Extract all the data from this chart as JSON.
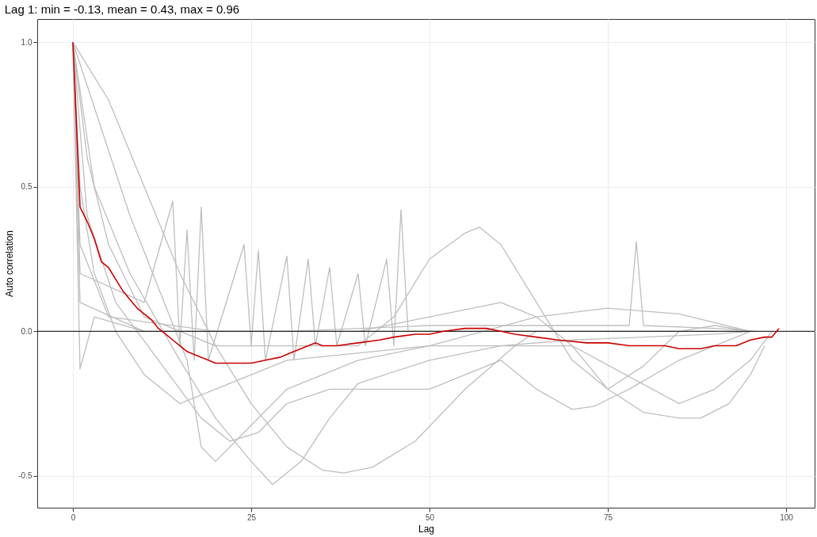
{
  "chart_data": {
    "type": "line",
    "title": "Lag 1: min = -0.13, mean = 0.43, max = 0.96",
    "xlabel": "Lag",
    "ylabel": "Auto correlation",
    "xlim": [
      -5,
      104
    ],
    "xticks": [
      0,
      25,
      50,
      75,
      100
    ],
    "ylim": [
      -0.61,
      1.08
    ],
    "yticks": [
      {
        "value": -0.5,
        "label": "-0.5"
      },
      {
        "value": 0,
        "label": "0.0"
      },
      {
        "value": 0.5,
        "label": "0.5"
      },
      {
        "value": 1,
        "label": "1.0"
      }
    ],
    "grid": true,
    "marker": "none",
    "line_style": "solid",
    "ref_lines": [
      {
        "axis": "y",
        "value": 0,
        "color": "#000000"
      }
    ],
    "series": [
      {
        "color": "#bebebe",
        "x": [
          0,
          5,
          10,
          15,
          20,
          25,
          30,
          35,
          38,
          42,
          48,
          55,
          62,
          65
        ],
        "values": [
          1,
          0.8,
          0.5,
          0.2,
          -0.05,
          -0.25,
          -0.4,
          -0.48,
          -0.49,
          -0.47,
          -0.38,
          -0.2,
          -0.05,
          0.0
        ]
      },
      {
        "color": "#bebebe",
        "x": [
          0,
          2,
          5,
          10,
          20,
          40,
          45,
          50,
          55,
          57,
          60,
          65,
          70,
          75,
          80,
          85,
          90,
          95
        ],
        "values": [
          1,
          0.6,
          0.3,
          0.05,
          -0.05,
          -0.05,
          0.05,
          0.25,
          0.34,
          0.36,
          0.3,
          0.1,
          -0.1,
          -0.2,
          -0.12,
          0.0,
          0.02,
          0.0
        ]
      },
      {
        "color": "#bebebe",
        "x": [
          0,
          3,
          8,
          15,
          20,
          25,
          28,
          32,
          36,
          40,
          50,
          60,
          70,
          80,
          90,
          95
        ],
        "values": [
          1,
          0.5,
          0.2,
          -0.1,
          -0.3,
          -0.45,
          -0.53,
          -0.45,
          -0.3,
          -0.18,
          -0.1,
          -0.05,
          -0.03,
          -0.02,
          -0.01,
          0
        ]
      },
      {
        "color": "#bebebe",
        "x": [
          0,
          1,
          5,
          20,
          40,
          50,
          60,
          65,
          70,
          75,
          80,
          85,
          88,
          92,
          95,
          97
        ],
        "values": [
          1,
          0.3,
          0.05,
          0,
          0,
          0.05,
          0.1,
          0.05,
          -0.05,
          -0.2,
          -0.28,
          -0.3,
          -0.3,
          -0.25,
          -0.15,
          -0.05
        ]
      },
      {
        "color": "#bebebe",
        "x": [
          0,
          1,
          10,
          14,
          15,
          16,
          17,
          18,
          19,
          24,
          25,
          26,
          27,
          30,
          31,
          33,
          34,
          36,
          37,
          40,
          41,
          44,
          45,
          46,
          47,
          60,
          70,
          80,
          90
        ],
        "values": [
          1,
          0.2,
          0.1,
          0.45,
          -0.05,
          0.35,
          -0.1,
          0.43,
          -0.1,
          0.3,
          -0.05,
          0.28,
          -0.1,
          0.26,
          -0.1,
          0.25,
          -0.05,
          0.22,
          -0.05,
          0.2,
          -0.05,
          0.25,
          -0.05,
          0.42,
          0.0,
          0.0,
          0.0,
          0.0,
          0.0
        ]
      },
      {
        "color": "#bebebe",
        "x": [
          0,
          1,
          10,
          30,
          50,
          70,
          78,
          79,
          80,
          90,
          96
        ],
        "values": [
          1,
          0.1,
          0,
          0,
          0.02,
          0.02,
          0.02,
          0.31,
          0.02,
          0.01,
          0.0
        ]
      },
      {
        "color": "#bebebe",
        "x": [
          0,
          2,
          6,
          12,
          18,
          22,
          26,
          30,
          36,
          45,
          50,
          55,
          60,
          65,
          70,
          73,
          78,
          85,
          90,
          95
        ],
        "values": [
          1,
          0.4,
          0.1,
          -0.1,
          -0.3,
          -0.38,
          -0.35,
          -0.25,
          -0.2,
          -0.2,
          -0.2,
          -0.15,
          -0.1,
          -0.2,
          -0.27,
          -0.26,
          -0.2,
          -0.1,
          -0.05,
          0
        ]
      },
      {
        "color": "#bebebe",
        "x": [
          0,
          1,
          3,
          10,
          30,
          60,
          80,
          95
        ],
        "values": [
          1,
          -0.13,
          0.05,
          0,
          0,
          0,
          0,
          0
        ]
      },
      {
        "color": "#bebebe",
        "x": [
          0,
          4,
          8,
          12,
          16,
          18,
          20,
          24,
          30,
          40,
          50,
          65,
          75,
          85,
          95
        ],
        "values": [
          1,
          0.7,
          0.4,
          0.15,
          -0.1,
          -0.4,
          -0.45,
          -0.35,
          -0.2,
          -0.1,
          -0.05,
          0.05,
          0.08,
          0.06,
          0
        ]
      },
      {
        "color": "#bebebe",
        "x": [
          0,
          1,
          3,
          6,
          10,
          15,
          20,
          30,
          50,
          70,
          85,
          90,
          95,
          98
        ],
        "values": [
          1,
          0.5,
          0.2,
          0.0,
          -0.15,
          -0.25,
          -0.2,
          -0.1,
          -0.05,
          -0.05,
          -0.25,
          -0.2,
          -0.1,
          0
        ]
      },
      {
        "color": "#cc0000",
        "x": [
          0,
          1,
          2,
          3,
          4,
          5,
          6,
          7,
          8,
          9,
          10,
          11,
          12,
          13,
          14,
          15,
          16,
          17,
          18,
          19,
          20,
          22,
          25,
          27,
          29,
          31,
          33,
          34,
          35,
          37,
          40,
          43,
          45,
          48,
          50,
          52,
          55,
          58,
          60,
          62,
          65,
          68,
          72,
          75,
          78,
          80,
          83,
          85,
          88,
          90,
          93,
          95,
          97,
          98,
          99
        ],
        "values": [
          1.0,
          0.43,
          0.38,
          0.32,
          0.24,
          0.22,
          0.18,
          0.14,
          0.11,
          0.08,
          0.06,
          0.04,
          0.01,
          -0.01,
          -0.03,
          -0.05,
          -0.07,
          -0.08,
          -0.09,
          -0.1,
          -0.11,
          -0.11,
          -0.11,
          -0.1,
          -0.09,
          -0.07,
          -0.05,
          -0.04,
          -0.05,
          -0.05,
          -0.04,
          -0.03,
          -0.02,
          -0.01,
          -0.01,
          0.0,
          0.01,
          0.01,
          0.0,
          -0.01,
          -0.02,
          -0.03,
          -0.04,
          -0.04,
          -0.05,
          -0.05,
          -0.05,
          -0.06,
          -0.06,
          -0.05,
          -0.05,
          -0.03,
          -0.02,
          -0.02,
          0.01
        ]
      }
    ]
  }
}
